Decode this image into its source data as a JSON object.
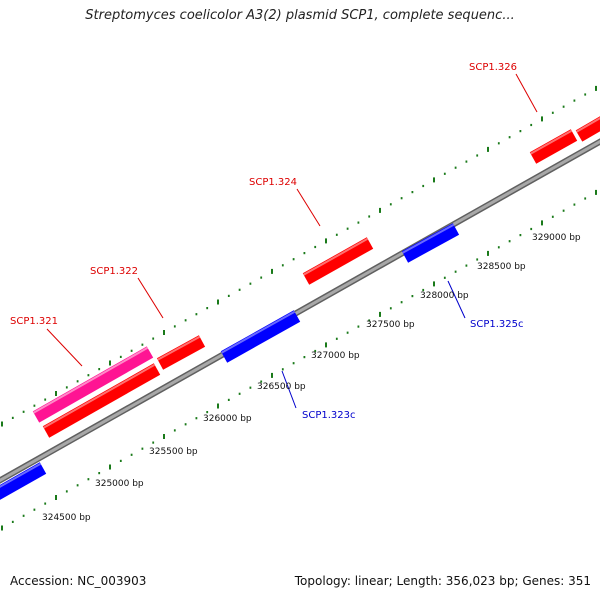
{
  "title": "Streptomyces coelicolor A3(2) plasmid SCP1, complete sequenc...",
  "footer": {
    "accession": "Accession: NC_003903",
    "summary": "Topology: linear; Length: 356,023 bp; Genes: 351"
  },
  "colors": {
    "forward_gene": "#ff0000",
    "reverse_gene": "#0000ff",
    "highlight_gene": "#ff1493",
    "backbone": "#808080",
    "ticks": "#1a7a1a",
    "forward_label": "#dd0000",
    "reverse_label": "#0000cc"
  },
  "scale_labels": [
    "324500 bp",
    "325000 bp",
    "325500 bp",
    "326000 bp",
    "326500 bp",
    "327000 bp",
    "327500 bp",
    "328000 bp",
    "328500 bp",
    "329000 bp"
  ],
  "genes": [
    {
      "label": "SCP1.321",
      "strand": "forward",
      "color": "highlight"
    },
    {
      "label": "SCP1.322",
      "strand": "forward",
      "color": "forward"
    },
    {
      "label": "SCP1.324",
      "strand": "forward",
      "color": "forward"
    },
    {
      "label": "SCP1.326",
      "strand": "forward",
      "color": "forward"
    },
    {
      "label": "SCP1.323c",
      "strand": "reverse",
      "color": "reverse"
    },
    {
      "label": "SCP1.325c",
      "strand": "reverse",
      "color": "reverse"
    }
  ]
}
